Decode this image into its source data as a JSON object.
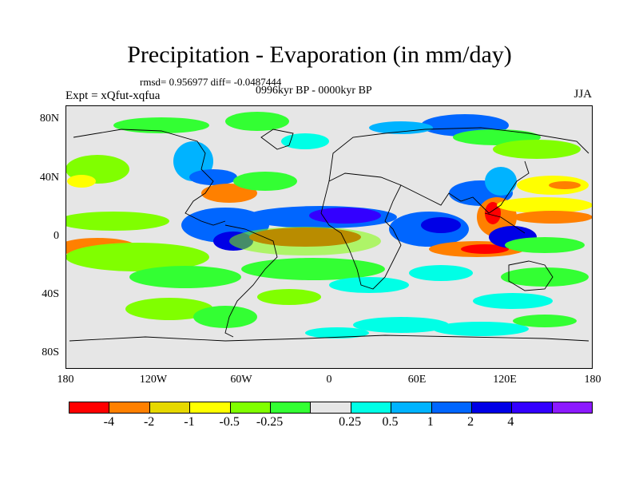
{
  "header": {
    "title": "Precipitation - Evaporation (in mm/day)",
    "stats": "rmsd= 0.956977 diff= -0.0487444",
    "period": "0996kyr BP - 0000kyr BP",
    "expt": "Expt = xQfut-xqfua",
    "season": "JJA"
  },
  "map": {
    "lat_labels": [
      "80N",
      "40N",
      "0",
      "40S",
      "80S"
    ],
    "lon_labels": [
      "180",
      "120W",
      "60W",
      "0",
      "60E",
      "120E",
      "180"
    ],
    "background_color": "#e6e6e6"
  },
  "colorbar": {
    "colors": [
      "#ff0000",
      "#ff8000",
      "#e6d800",
      "#ffff00",
      "#80ff00",
      "#33ff33",
      "#e6e6e6",
      "#00ffe6",
      "#00b3ff",
      "#0066ff",
      "#0000e6",
      "#3300ff",
      "#8c1aff"
    ],
    "labels": [
      "-4",
      "-2",
      "-1",
      "-0.5",
      "-0.25",
      "0.25",
      "0.5",
      "1",
      "2",
      "4"
    ]
  }
}
